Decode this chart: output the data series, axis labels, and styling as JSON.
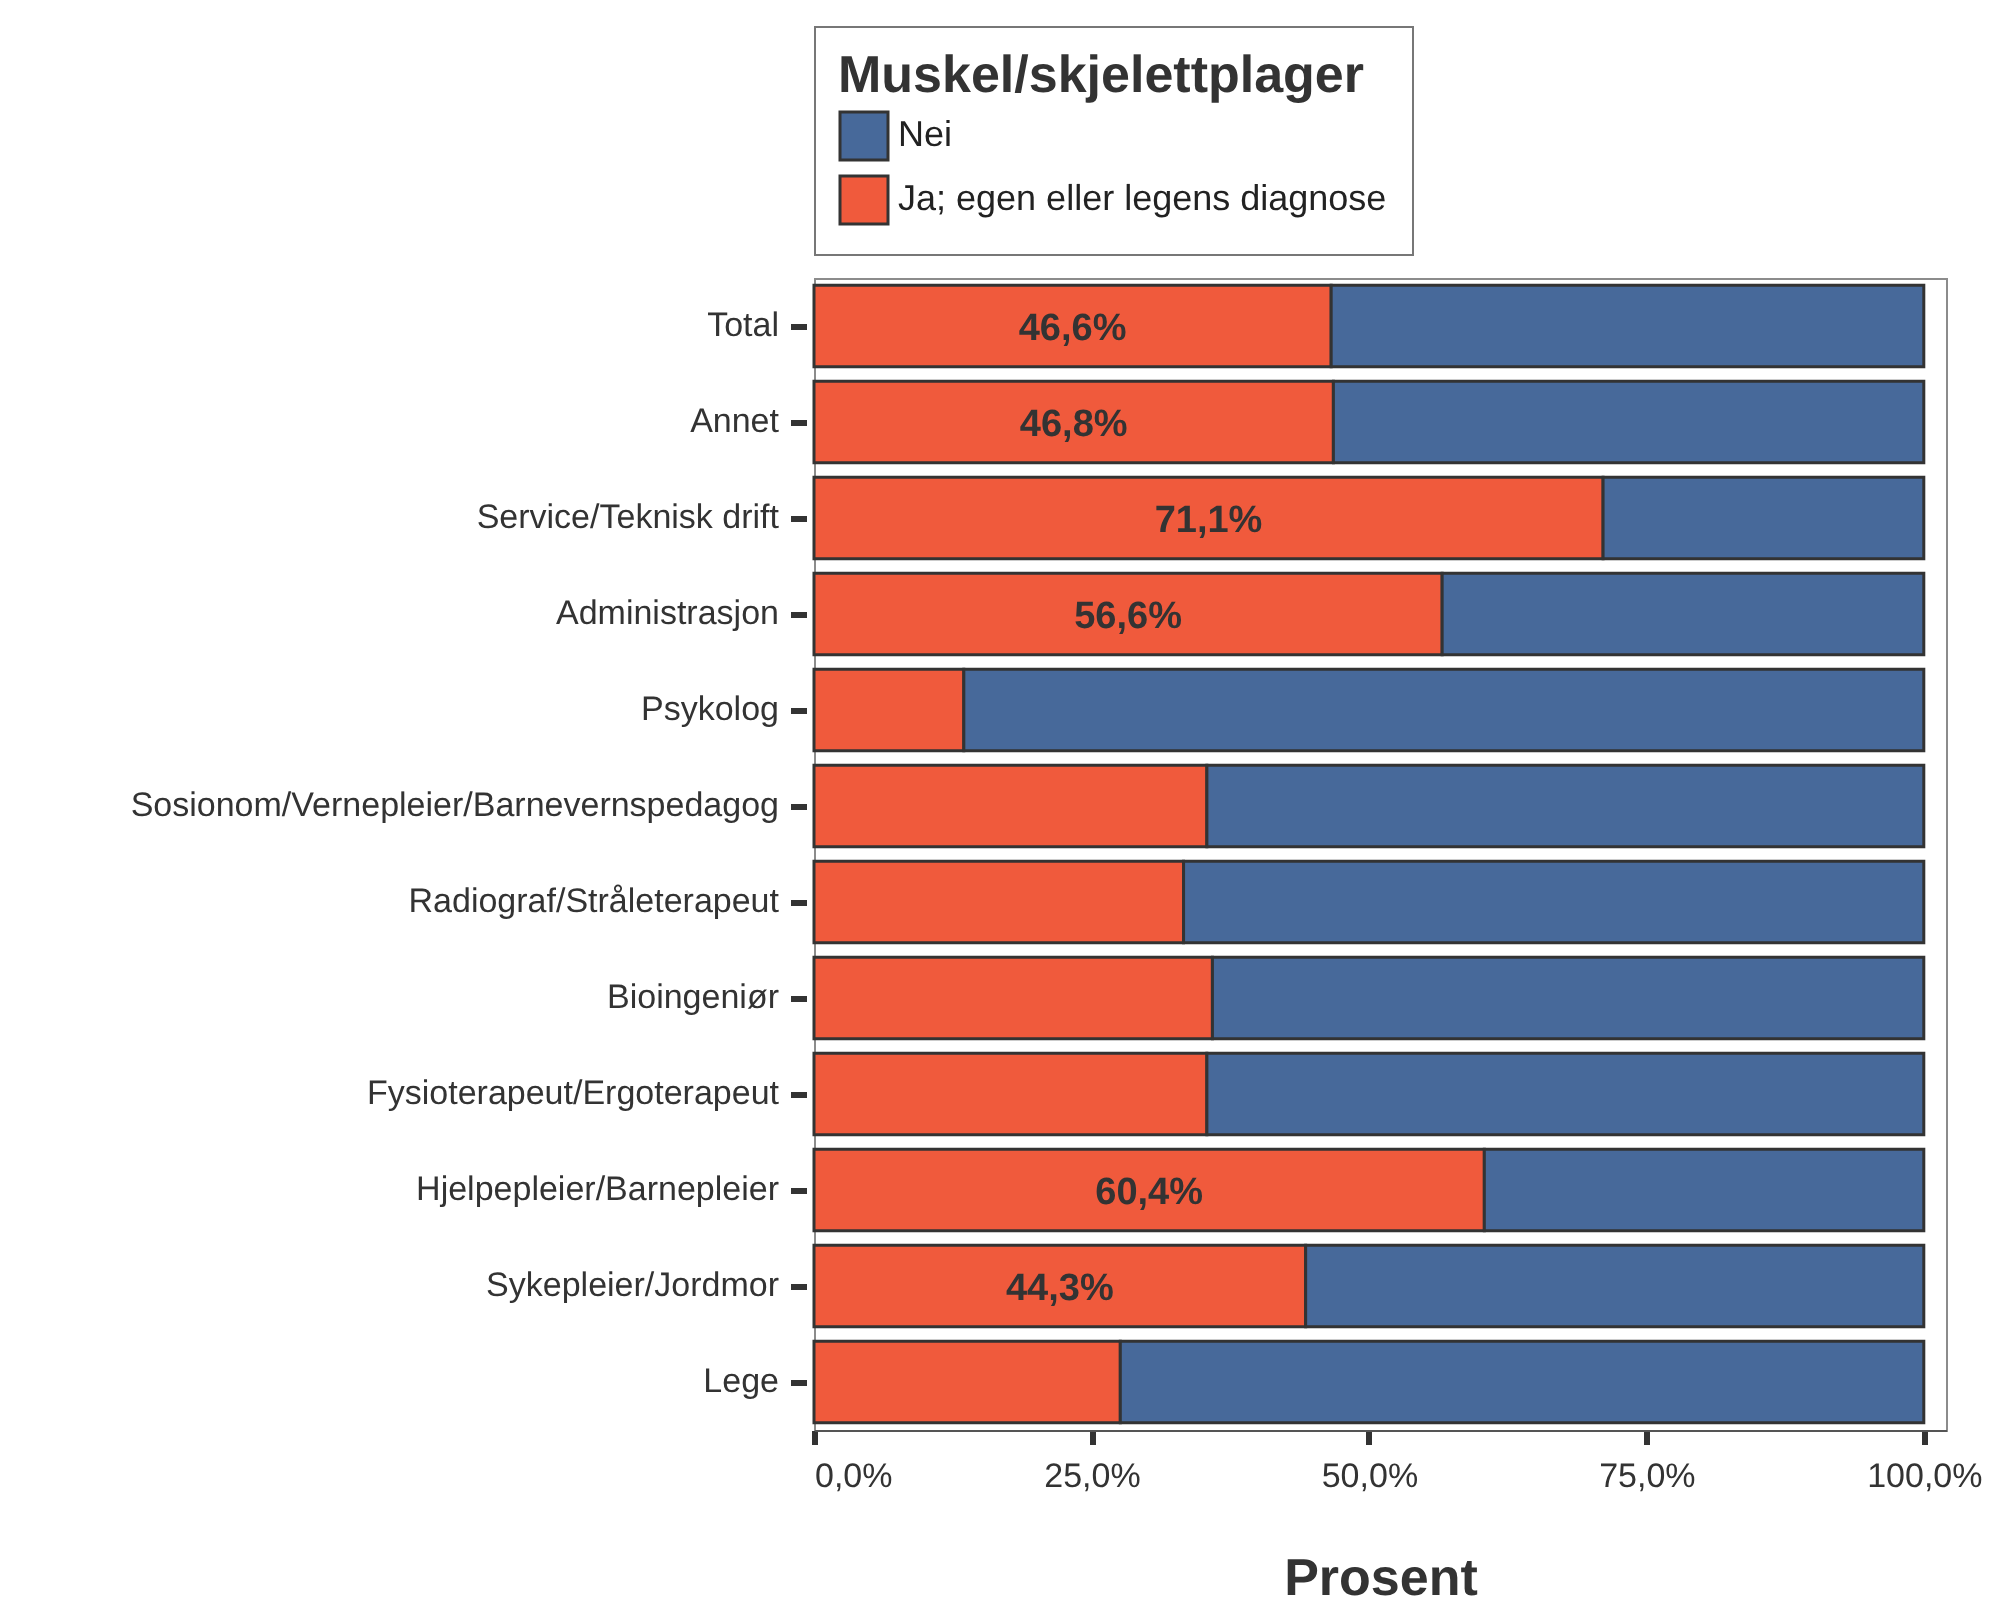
{
  "chart_data": {
    "type": "bar",
    "orientation": "horizontal",
    "stacked": true,
    "categories": [
      "Total",
      "Annet",
      "Service/Teknisk drift",
      "Administrasjon",
      "Psykolog",
      "Sosionom/Vernepleier/Barnevernspedagog",
      "Radiograf/Stråleterapeut",
      "Bioingeniør",
      "Fysioterapeut/Ergoterapeut",
      "Hjelpepleier/Barnepleier",
      "Sykepleier/Jordmor",
      "Lege"
    ],
    "series": [
      {
        "name": "Ja; egen eller legens diagnose",
        "color": "#f05a3c",
        "values": [
          46.6,
          46.8,
          71.1,
          56.6,
          13.5,
          35.4,
          33.3,
          35.9,
          35.4,
          60.4,
          44.3,
          27.6
        ],
        "value_labels": [
          "46,6%",
          "46,8%",
          "71,1%",
          "56,6%",
          null,
          null,
          null,
          null,
          null,
          "60,4%",
          "44,3%",
          null
        ]
      },
      {
        "name": "Nei",
        "color": "#47699a",
        "values": [
          53.4,
          53.2,
          28.9,
          43.4,
          86.5,
          64.6,
          66.7,
          64.1,
          64.6,
          39.6,
          55.7,
          72.4
        ]
      }
    ],
    "xlabel": "Prosent",
    "legend_title": "Muskel/skjelettplager",
    "legend": "top",
    "xlim": [
      0,
      102
    ],
    "xticks": [
      {
        "value": 0,
        "label": "0,0%"
      },
      {
        "value": 25,
        "label": "25,0%"
      },
      {
        "value": 50,
        "label": "50,0%"
      },
      {
        "value": 75,
        "label": "75,0%"
      },
      {
        "value": 100,
        "label": "100,0%"
      }
    ]
  }
}
